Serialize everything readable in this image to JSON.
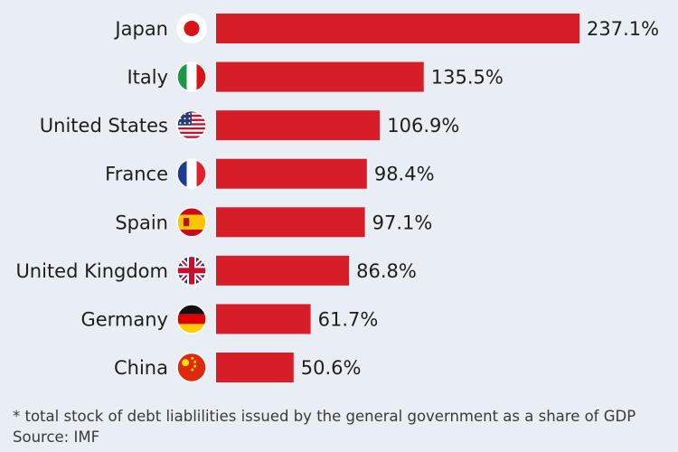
{
  "chart_data": {
    "type": "bar",
    "orientation": "horizontal",
    "categories": [
      "Japan",
      "Italy",
      "United States",
      "France",
      "Spain",
      "United Kingdom",
      "Germany",
      "China"
    ],
    "values": [
      237.1,
      135.5,
      106.9,
      98.4,
      97.1,
      86.8,
      61.7,
      50.6
    ],
    "value_labels": [
      "237.1%",
      "135.5%",
      "106.9%",
      "98.4%",
      "97.1%",
      "86.8%",
      "61.7%",
      "50.6%"
    ],
    "flags": [
      "japan-flag-icon",
      "italy-flag-icon",
      "united-states-flag-icon",
      "france-flag-icon",
      "spain-flag-icon",
      "united-kingdom-flag-icon",
      "germany-flag-icon",
      "china-flag-icon"
    ],
    "bar_color": "#d71e28",
    "xlim": [
      0,
      237.1
    ],
    "grid": false,
    "legend": "none"
  },
  "footnote": "* total stock of debt liablilities issued by the general government as a share of GDP",
  "source": "Source: IMF",
  "colors": {
    "background": "#e8eef3",
    "bar": "#d71e28",
    "text": "#1e1e1e"
  }
}
